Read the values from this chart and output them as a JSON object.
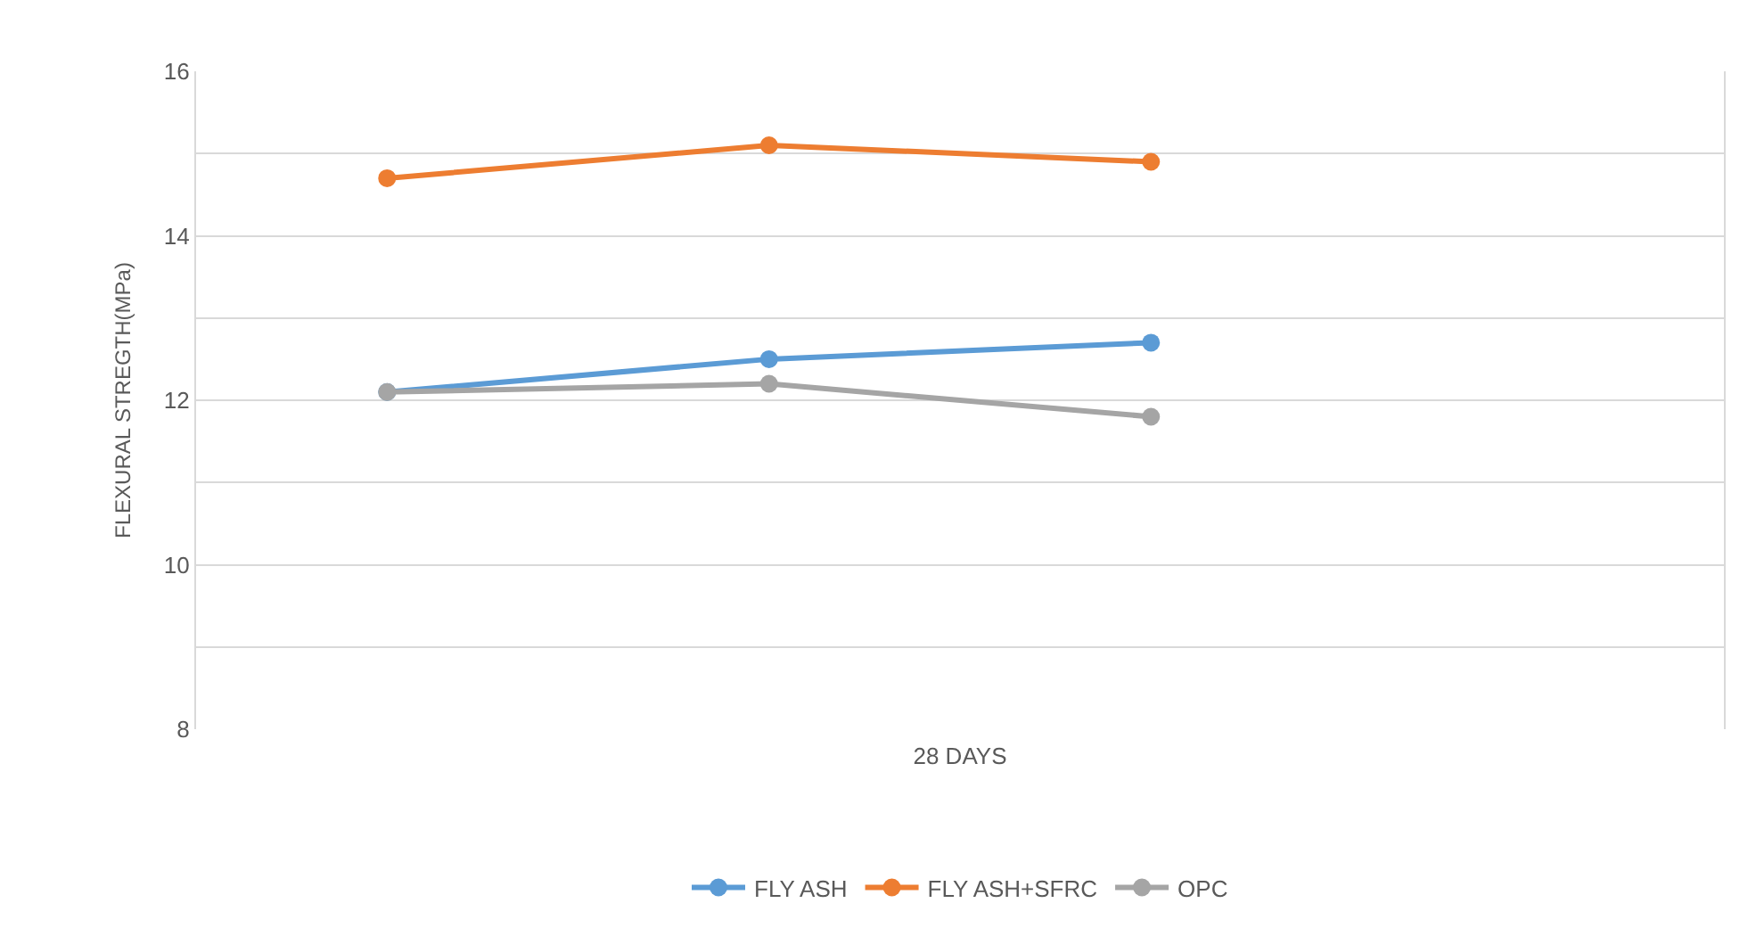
{
  "chart_data": {
    "type": "line",
    "xlabel": "28 DAYS",
    "ylabel": "FLEXURAL STREGTH(MPa)",
    "categories": [
      null,
      null,
      null,
      null
    ],
    "series": [
      {
        "name": "FLY ASH",
        "color": "#5b9bd5",
        "values": [
          12.1,
          12.5,
          12.7,
          null
        ]
      },
      {
        "name": "FLY ASH+SFRC",
        "color": "#ed7d31",
        "values": [
          14.7,
          15.1,
          14.9,
          null
        ]
      },
      {
        "name": "OPC",
        "color": "#a5a5a5",
        "values": [
          12.1,
          12.2,
          11.8,
          null
        ]
      }
    ],
    "ylim": [
      8,
      16
    ],
    "yticks": [
      8,
      {
        "value": 9,
        "label": null
      },
      10,
      {
        "value": 11,
        "label": null
      },
      12,
      {
        "value": 13,
        "label": null
      },
      14,
      {
        "value": 15,
        "label": null
      },
      16
    ],
    "grid": "y",
    "legend": "bottom",
    "marker": "circle",
    "line_style": "solid",
    "tick_labels": "y"
  }
}
